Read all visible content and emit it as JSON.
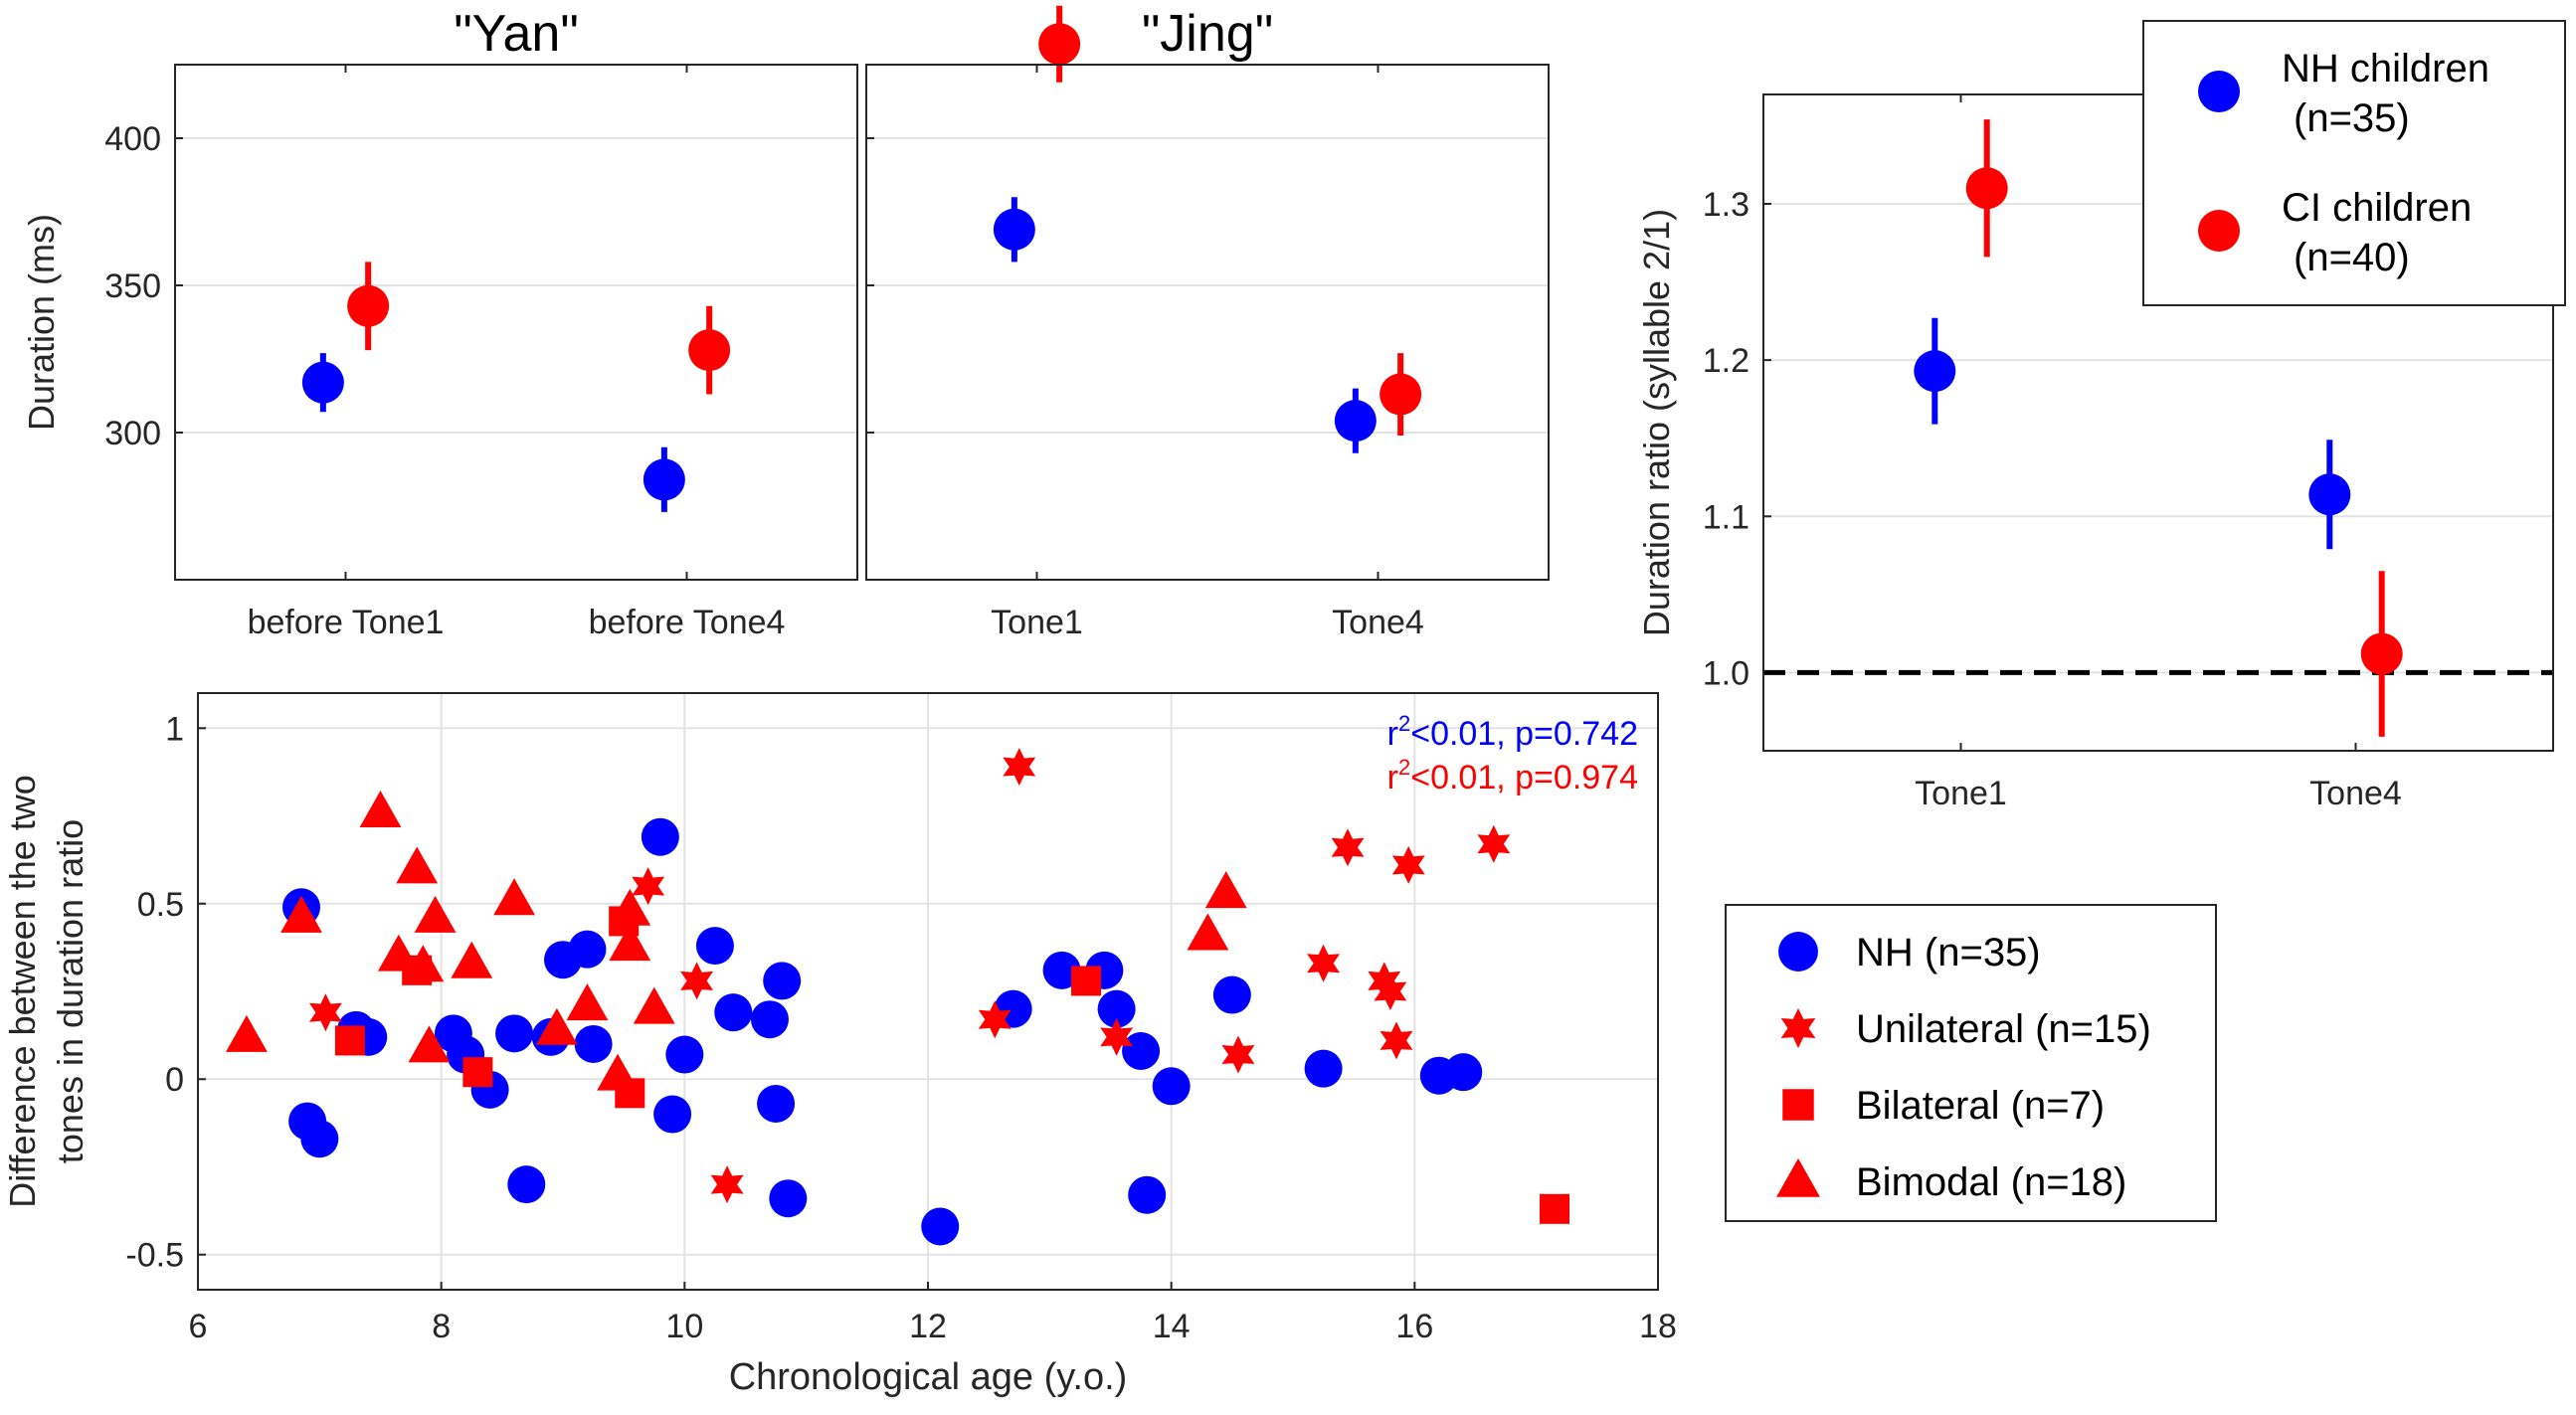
{
  "colors": {
    "nh": "#0000ff",
    "ci": "#ff0000",
    "axis": "#262626",
    "grid": "#e3e3e3",
    "ref": "#000000"
  },
  "chart_data": [
    {
      "id": "yan",
      "type": "scatter",
      "title": "\"Yan\"",
      "ylabel": "Duration (ms)",
      "categories": [
        "before Tone1",
        "before Tone4"
      ],
      "ylim": [
        250,
        425
      ],
      "yticks": [
        300,
        350,
        400
      ],
      "grid": true,
      "series": [
        {
          "name": "NH children",
          "color": "nh",
          "points": [
            {
              "cat": 0,
              "offset": -0.2,
              "y": 317,
              "err": 10
            },
            {
              "cat": 1,
              "offset": -0.2,
              "y": 284,
              "err": 11
            }
          ]
        },
        {
          "name": "CI children",
          "color": "ci",
          "points": [
            {
              "cat": 0,
              "offset": 0.2,
              "y": 343,
              "err": 15
            },
            {
              "cat": 1,
              "offset": 0.2,
              "y": 328,
              "err": 15
            }
          ]
        }
      ]
    },
    {
      "id": "jing",
      "type": "scatter",
      "title": "\"Jing\"",
      "ylabel": "",
      "categories": [
        "Tone1",
        "Tone4"
      ],
      "ylim": [
        250,
        425
      ],
      "yticks": [
        300,
        350,
        400
      ],
      "grid": true,
      "series": [
        {
          "name": "NH children",
          "color": "nh",
          "points": [
            {
              "cat": 0,
              "offset": -0.2,
              "y": 369,
              "err": 11
            },
            {
              "cat": 1,
              "offset": -0.2,
              "y": 304,
              "err": 11
            }
          ]
        },
        {
          "name": "CI children",
          "color": "ci",
          "points": [
            {
              "cat": 0,
              "offset": 0.2,
              "y": 432,
              "err": 13
            },
            {
              "cat": 1,
              "offset": 0.2,
              "y": 313,
              "err": 14
            }
          ]
        }
      ]
    },
    {
      "id": "ratio",
      "type": "scatter",
      "title": "",
      "ylabel": "Duration ratio (syllable 2/1)",
      "categories": [
        "Tone1",
        "Tone4"
      ],
      "ylim": [
        0.95,
        1.37
      ],
      "yticks": [
        1.0,
        1.1,
        1.2,
        1.3
      ],
      "ytick_labels": [
        "1.0",
        "1.1",
        "1.2",
        "1.3"
      ],
      "reference_line": 1.0,
      "grid": true,
      "legend": {
        "position": "top-right",
        "entries": [
          {
            "label": "NH children",
            "sub": "(n=35)",
            "color": "nh"
          },
          {
            "label": "CI children",
            "sub": "(n=40)",
            "color": "ci"
          }
        ]
      },
      "series": [
        {
          "name": "NH children",
          "color": "nh",
          "points": [
            {
              "cat": 0,
              "offset": -0.2,
              "y": 1.193,
              "err": 0.034
            },
            {
              "cat": 1,
              "offset": -0.2,
              "y": 1.114,
              "err": 0.035
            }
          ]
        },
        {
          "name": "CI children",
          "color": "ci",
          "points": [
            {
              "cat": 0,
              "offset": 0.2,
              "y": 1.31,
              "err": 0.044
            },
            {
              "cat": 1,
              "offset": 0.2,
              "y": 1.012,
              "err": 0.053
            }
          ]
        }
      ]
    },
    {
      "id": "age",
      "type": "scatter",
      "title": "",
      "xlabel": "Chronological age (y.o.)",
      "ylabel_lines": [
        "Difference between the two",
        "tones in duration ratio"
      ],
      "xlim": [
        6,
        18
      ],
      "xticks": [
        6,
        8,
        10,
        12,
        14,
        16,
        18
      ],
      "ylim": [
        -0.6,
        1.1
      ],
      "yticks": [
        -0.5,
        0,
        0.5,
        1
      ],
      "ytick_labels": [
        "-0.5",
        "0",
        "0.5",
        "1"
      ],
      "grid": true,
      "annotations": [
        {
          "text": "<0.01, p=0.742",
          "prefix": "r",
          "sup": "2",
          "color": "nh"
        },
        {
          "text": "<0.01, p=0.974",
          "prefix": "r",
          "sup": "2",
          "color": "ci"
        }
      ],
      "legend": {
        "position": "right",
        "entries": [
          {
            "label": "NH (n=35)",
            "marker": "circle",
            "color": "nh"
          },
          {
            "label": "Unilateral (n=15)",
            "marker": "star",
            "color": "ci"
          },
          {
            "label": "Bilateral (n=7)",
            "marker": "square",
            "color": "ci"
          },
          {
            "label": "Bimodal (n=18)",
            "marker": "triangle",
            "color": "ci"
          }
        ]
      },
      "series": [
        {
          "name": "NH (n=35)",
          "marker": "circle",
          "color": "nh",
          "x": [
            6.85,
            6.9,
            7.0,
            7.3,
            7.4,
            8.1,
            8.2,
            8.4,
            8.6,
            8.7,
            8.9,
            9.0,
            9.2,
            9.25,
            9.8,
            9.9,
            10.0,
            10.25,
            10.4,
            10.7,
            10.75,
            10.8,
            10.85,
            12.1,
            12.7,
            13.45,
            13.55,
            13.75,
            13.8,
            14.0,
            14.5,
            15.25,
            16.2,
            16.4,
            13.1
          ],
          "y": [
            0.49,
            -0.12,
            -0.17,
            0.14,
            0.12,
            0.13,
            0.07,
            -0.03,
            0.13,
            -0.3,
            0.12,
            0.34,
            0.37,
            0.1,
            0.69,
            -0.1,
            0.07,
            0.38,
            0.19,
            0.17,
            -0.07,
            0.28,
            -0.34,
            -0.42,
            0.2,
            0.31,
            0.2,
            0.08,
            -0.33,
            -0.02,
            0.24,
            0.03,
            0.01,
            0.02,
            0.31
          ]
        },
        {
          "name": "Unilateral (n=15)",
          "marker": "star",
          "color": "ci",
          "x": [
            7.05,
            9.7,
            10.1,
            10.35,
            12.55,
            12.75,
            13.55,
            14.55,
            15.25,
            15.45,
            15.75,
            15.8,
            15.85,
            15.95,
            16.65
          ],
          "y": [
            0.19,
            0.55,
            0.28,
            -0.3,
            0.17,
            0.89,
            0.12,
            0.07,
            0.33,
            0.66,
            0.28,
            0.25,
            0.11,
            0.61,
            0.67
          ]
        },
        {
          "name": "Bilateral (n=7)",
          "marker": "square",
          "color": "ci",
          "x": [
            7.25,
            7.8,
            8.3,
            9.5,
            9.55,
            13.3,
            17.15
          ],
          "y": [
            0.11,
            0.31,
            0.02,
            0.45,
            -0.04,
            0.28,
            -0.37
          ]
        },
        {
          "name": "Bimodal (n=18)",
          "marker": "triangle",
          "color": "ci",
          "x": [
            6.4,
            6.85,
            7.5,
            7.65,
            7.8,
            7.85,
            7.9,
            7.95,
            8.25,
            8.6,
            8.95,
            9.2,
            9.45,
            9.55,
            9.75,
            14.3,
            14.45,
            9.55
          ],
          "y": [
            0.12,
            0.46,
            0.76,
            0.35,
            0.6,
            0.32,
            0.09,
            0.46,
            0.33,
            0.51,
            0.14,
            0.21,
            0.01,
            0.48,
            0.2,
            0.41,
            0.53,
            0.38
          ]
        }
      ]
    }
  ]
}
